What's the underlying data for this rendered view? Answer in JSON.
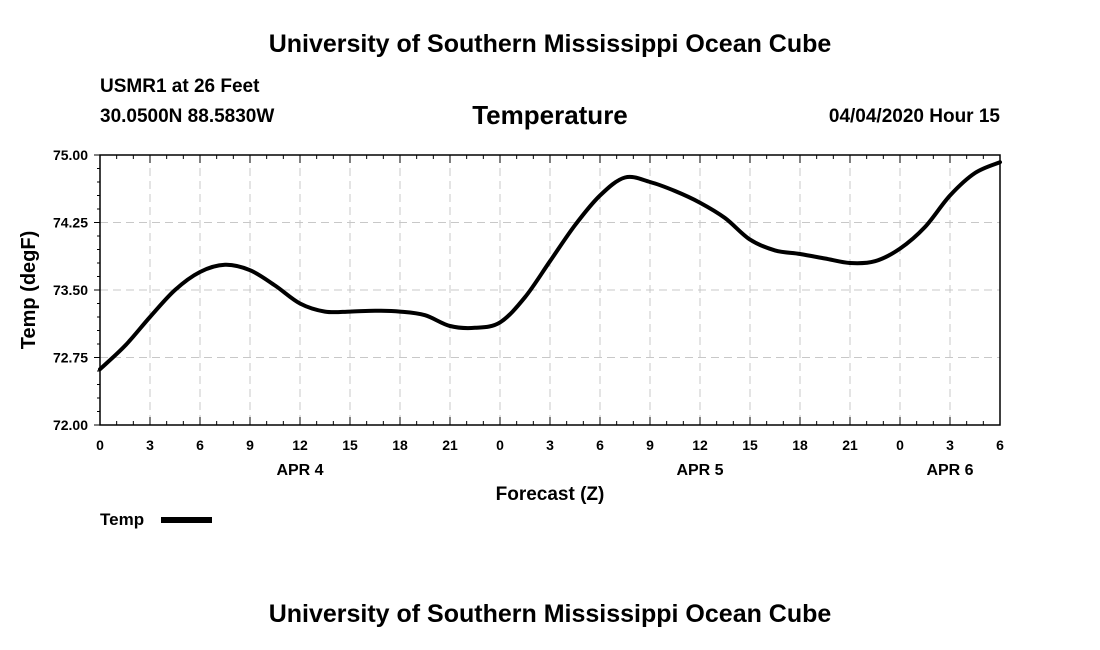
{
  "header": {
    "title": "University of Southern Mississippi Ocean Cube",
    "station": "USMR1 at 26 Feet",
    "coordinates": "30.0500N 88.5830W",
    "datetime": "04/04/2020 Hour 15"
  },
  "footer": {
    "title": "University of Southern Mississippi Ocean Cube"
  },
  "colors": {
    "line": "#000000",
    "grid": "#c8c8c8",
    "background": "#ffffff"
  },
  "chart_data": {
    "type": "line",
    "title": "Temperature",
    "xlabel": "Forecast (Z)",
    "ylabel": "Temp (degF)",
    "xlim": [
      0,
      54
    ],
    "ylim": [
      72.0,
      75.0
    ],
    "grid": true,
    "legend_position": "bottom-left",
    "yticks": [
      {
        "value": 72.0,
        "label": "72.00"
      },
      {
        "value": 72.75,
        "label": "72.75"
      },
      {
        "value": 73.5,
        "label": "73.50"
      },
      {
        "value": 74.25,
        "label": "74.25"
      },
      {
        "value": 75.0,
        "label": "75.00"
      }
    ],
    "xticks": [
      {
        "value": 0,
        "label": "0"
      },
      {
        "value": 3,
        "label": "3"
      },
      {
        "value": 6,
        "label": "6"
      },
      {
        "value": 9,
        "label": "9"
      },
      {
        "value": 12,
        "label": "12"
      },
      {
        "value": 15,
        "label": "15"
      },
      {
        "value": 18,
        "label": "18"
      },
      {
        "value": 21,
        "label": "21"
      },
      {
        "value": 24,
        "label": "0"
      },
      {
        "value": 27,
        "label": "3"
      },
      {
        "value": 30,
        "label": "6"
      },
      {
        "value": 33,
        "label": "9"
      },
      {
        "value": 36,
        "label": "12"
      },
      {
        "value": 39,
        "label": "15"
      },
      {
        "value": 42,
        "label": "18"
      },
      {
        "value": 45,
        "label": "21"
      },
      {
        "value": 48,
        "label": "0"
      },
      {
        "value": 51,
        "label": "3"
      },
      {
        "value": 54,
        "label": "6"
      }
    ],
    "date_labels": [
      {
        "value": 12,
        "label": "APR 4"
      },
      {
        "value": 36,
        "label": "APR 5"
      },
      {
        "value": 51,
        "label": "APR 6"
      }
    ],
    "series": [
      {
        "name": "Temp",
        "x": [
          0,
          1.5,
          3,
          4.5,
          6,
          7.5,
          9,
          10.5,
          12,
          13.5,
          15,
          16.5,
          18,
          19.5,
          21,
          22.5,
          24,
          25.5,
          27,
          28.5,
          30,
          31.5,
          33,
          34.5,
          36,
          37.5,
          39,
          40.5,
          42,
          43.5,
          45,
          46.5,
          48,
          49.5,
          51,
          52.5,
          54
        ],
        "values": [
          72.62,
          72.88,
          73.2,
          73.5,
          73.7,
          73.78,
          73.72,
          73.55,
          73.35,
          73.26,
          73.26,
          73.27,
          73.26,
          73.22,
          73.1,
          73.08,
          73.14,
          73.42,
          73.82,
          74.22,
          74.55,
          74.75,
          74.7,
          74.6,
          74.47,
          74.3,
          74.06,
          73.94,
          73.9,
          73.85,
          73.8,
          73.82,
          73.96,
          74.2,
          74.55,
          74.8,
          74.92
        ]
      }
    ]
  }
}
